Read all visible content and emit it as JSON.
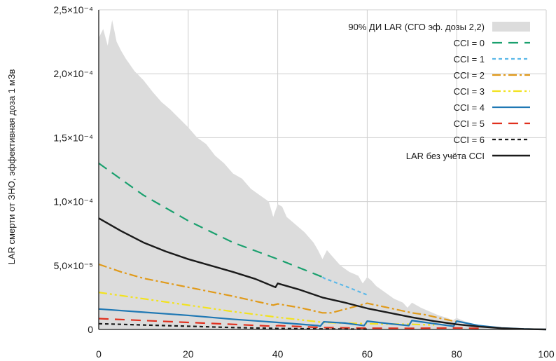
{
  "chart_data": {
    "type": "line",
    "title": "",
    "xlabel": "",
    "ylabel": "LAR смерти от ЗНО, эффективная доза 1 мЗв",
    "xlim": [
      0,
      100
    ],
    "ylim": [
      0,
      0.00025
    ],
    "x_ticks": [
      {
        "value": 0,
        "label": "0"
      },
      {
        "value": 20,
        "label": "20"
      },
      {
        "value": 40,
        "label": "40"
      },
      {
        "value": 60,
        "label": "60"
      },
      {
        "value": 80,
        "label": "80"
      },
      {
        "value": 100,
        "label": "100"
      }
    ],
    "y_ticks": [
      {
        "value": 0,
        "label": "0"
      },
      {
        "value": 5e-05,
        "label": "5,0×10⁻⁵"
      },
      {
        "value": 0.0001,
        "label": "1,0×10⁻⁴"
      },
      {
        "value": 0.00015,
        "label": "1,5×10⁻⁴"
      },
      {
        "value": 0.0002,
        "label": "2,0×10⁻⁴"
      },
      {
        "value": 0.00025,
        "label": "2,5×10⁻⁴"
      }
    ],
    "grid": true,
    "legend_position": "top-right",
    "band": {
      "name": "90% ДИ LAR (СГО эф. дозы 2,2)",
      "color": "#dcdcdc",
      "x": [
        0,
        1,
        2,
        3,
        4,
        5,
        6,
        8,
        10,
        12,
        14,
        16,
        18,
        20,
        22,
        24,
        26,
        28,
        30,
        32,
        34,
        36,
        38,
        39,
        40,
        41,
        42,
        44,
        46,
        48,
        49,
        50,
        51,
        52,
        54,
        56,
        58,
        59,
        60,
        61,
        62,
        64,
        66,
        68,
        69,
        70,
        71,
        72,
        74,
        76,
        78,
        79,
        80,
        82,
        84,
        86,
        88,
        90,
        92,
        94,
        96,
        98,
        100
      ],
      "upper": [
        0.000228,
        0.000235,
        0.000222,
        0.000242,
        0.000225,
        0.000218,
        0.000212,
        0.000202,
        0.000195,
        0.000186,
        0.000178,
        0.000172,
        0.000165,
        0.000158,
        0.00015,
        0.000145,
        0.000136,
        0.00013,
        0.000122,
        0.000118,
        0.00011,
        0.000105,
        0.0001,
        8.8e-05,
        9.8e-05,
        9.6e-05,
        8.8e-05,
        8.2e-05,
        7.6e-05,
        6.8e-05,
        6.2e-05,
        5.5e-05,
        6.2e-05,
        5.8e-05,
        5e-05,
        4.5e-05,
        4.2e-05,
        3.6e-05,
        4.1e-05,
        3.8e-05,
        3.4e-05,
        2.9e-05,
        2.4e-05,
        2.1e-05,
        1.7e-05,
        2.1e-05,
        1.9e-05,
        1.7e-05,
        1.4e-05,
        1.1e-05,
        9e-06,
        7e-06,
        9e-06,
        6e-06,
        4e-06,
        2.5e-06,
        1.5e-06,
        1e-06,
        6e-07,
        3e-07,
        1.5e-07,
        5e-08,
        0
      ],
      "lower": 0
    },
    "series": [
      {
        "name": "CCI = 0",
        "color": "#1aa06e",
        "dash": "14,9",
        "width": 2.2,
        "points": [
          [
            0,
            0.00013
          ],
          [
            10,
            0.000105
          ],
          [
            20,
            8.5e-05
          ],
          [
            30,
            6.8e-05
          ],
          [
            40,
            5.5e-05
          ],
          [
            50,
            4.1e-05
          ]
        ]
      },
      {
        "name": "CCI = 1",
        "color": "#5bb8e8",
        "dash": "5,4",
        "width": 2.2,
        "points": [
          [
            50,
            4.1e-05
          ],
          [
            50.4,
            4e-05
          ],
          [
            55,
            3.4e-05
          ],
          [
            60,
            2.7e-05
          ]
        ]
      },
      {
        "name": "CCI = 2",
        "color": "#e09a1a",
        "dash": "12,4,3,4",
        "width": 2.2,
        "points": [
          [
            0,
            5.1e-05
          ],
          [
            5,
            4.5e-05
          ],
          [
            10,
            4e-05
          ],
          [
            20,
            3.3e-05
          ],
          [
            30,
            2.6e-05
          ],
          [
            39,
            1.9e-05
          ],
          [
            40,
            2e-05
          ],
          [
            45,
            1.7e-05
          ],
          [
            50,
            1.3e-05
          ],
          [
            52,
            1.3e-05
          ],
          [
            60,
            2.05e-05
          ],
          [
            62,
            1.9e-05
          ],
          [
            66,
            1.6e-05
          ],
          [
            70,
            1.3e-05
          ],
          [
            73,
            1.15e-05
          ],
          [
            76,
            9e-06
          ],
          [
            80,
            6e-06
          ]
        ]
      },
      {
        "name": "CCI = 3",
        "color": "#f2e21e",
        "dash": "12,4,3,4,3,4",
        "width": 2.2,
        "points": [
          [
            0,
            2.9e-05
          ],
          [
            10,
            2.4e-05
          ],
          [
            20,
            1.9e-05
          ],
          [
            30,
            1.4e-05
          ],
          [
            40,
            9.5e-06
          ],
          [
            49,
            6e-06
          ],
          [
            50,
            5.5e-06
          ],
          [
            60,
            4.5e-06
          ],
          [
            70,
            4e-06
          ],
          [
            75,
            3.5e-06
          ]
        ]
      },
      {
        "name": "CCI = 4",
        "color": "#1f78b4",
        "dash": "",
        "width": 2.2,
        "points": [
          [
            0,
            1.6e-05
          ],
          [
            10,
            1.35e-05
          ],
          [
            20,
            1.1e-05
          ],
          [
            30,
            8e-06
          ],
          [
            40,
            5.5e-06
          ],
          [
            49,
            3e-06
          ],
          [
            49.5,
            2.5e-06
          ],
          [
            50.3,
            6e-06
          ],
          [
            55,
            5e-06
          ],
          [
            59.3,
            3e-06
          ],
          [
            60,
            6.5e-06
          ],
          [
            65,
            4.5e-06
          ],
          [
            69.3,
            3e-06
          ],
          [
            70,
            7e-06
          ],
          [
            75,
            4.5e-06
          ],
          [
            79.3,
            2.5e-06
          ],
          [
            80,
            6.5e-06
          ],
          [
            85,
            3e-06
          ],
          [
            90,
            1.2e-06
          ],
          [
            95,
            4e-07
          ],
          [
            100,
            0
          ]
        ]
      },
      {
        "name": "CCI = 5",
        "color": "#e0301e",
        "dash": "14,9",
        "width": 2.2,
        "points": [
          [
            0,
            8.5e-06
          ],
          [
            10,
            7e-06
          ],
          [
            20,
            5.5e-06
          ],
          [
            30,
            4e-06
          ],
          [
            39,
            2.5e-06
          ],
          [
            40,
            3e-06
          ],
          [
            50,
            1.5e-06
          ],
          [
            60,
            1e-06
          ],
          [
            70,
            9e-07
          ],
          [
            80,
            1.2e-06
          ],
          [
            85,
            8e-07
          ]
        ]
      },
      {
        "name": "CCI = 6",
        "color": "#1a1a1a",
        "dash": "5,4",
        "width": 2.2,
        "points": [
          [
            0,
            4.5e-06
          ],
          [
            10,
            3.5e-06
          ],
          [
            20,
            2.5e-06
          ],
          [
            30,
            1.5e-06
          ],
          [
            40,
            8e-07
          ],
          [
            50,
            4e-07
          ],
          [
            60,
            2e-07
          ]
        ]
      },
      {
        "name": "LAR без учёта CCI",
        "color": "#1a1a1a",
        "dash": "",
        "width": 2.4,
        "points": [
          [
            0,
            8.7e-05
          ],
          [
            5,
            7.7e-05
          ],
          [
            10,
            6.8e-05
          ],
          [
            15,
            6.1e-05
          ],
          [
            20,
            5.5e-05
          ],
          [
            25,
            5e-05
          ],
          [
            30,
            4.5e-05
          ],
          [
            35,
            3.95e-05
          ],
          [
            39.5,
            3.3e-05
          ],
          [
            40,
            3.6e-05
          ],
          [
            45,
            3.1e-05
          ],
          [
            50,
            2.5e-05
          ],
          [
            55,
            2.1e-05
          ],
          [
            60,
            1.65e-05
          ],
          [
            65,
            1.3e-05
          ],
          [
            70,
            9.5e-06
          ],
          [
            75,
            6.5e-06
          ],
          [
            80,
            4e-06
          ],
          [
            85,
            2.2e-06
          ],
          [
            90,
            1e-06
          ],
          [
            95,
            3e-07
          ],
          [
            100,
            0
          ]
        ]
      }
    ]
  }
}
